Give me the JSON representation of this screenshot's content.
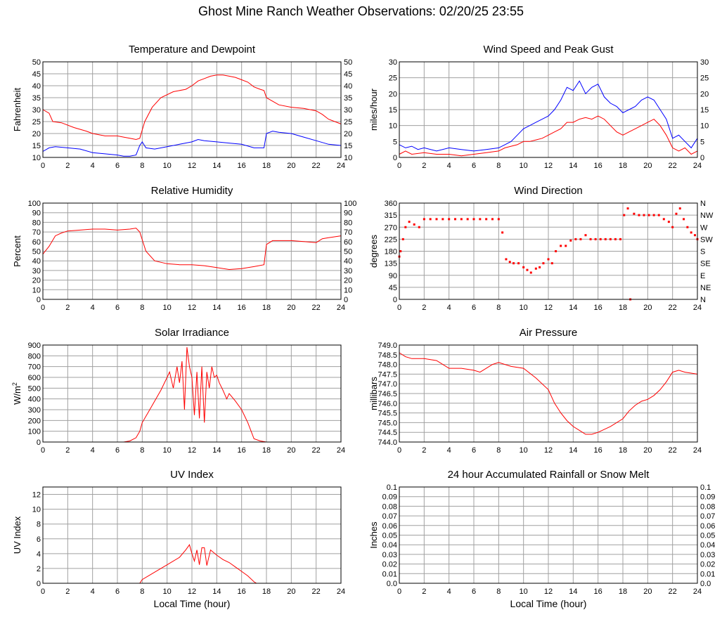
{
  "page": {
    "title": "Ghost Mine Ranch Weather Observations: 02/20/25 23:55"
  },
  "colors": {
    "red": "#ff0000",
    "blue": "#0000ff",
    "grid": "#a0a0a0",
    "frame": "#000000"
  },
  "chart_data": [
    {
      "id": "temp",
      "type": "line",
      "title": "Temperature and Dewpoint",
      "ylabel": "Fahrenheit",
      "xlim": [
        0,
        24
      ],
      "ylim": [
        10,
        50
      ],
      "xticks": [
        "0",
        "2",
        "4",
        "6",
        "8",
        "10",
        "12",
        "14",
        "16",
        "18",
        "20",
        "22",
        "24"
      ],
      "yticks": [
        "10",
        "15",
        "20",
        "25",
        "30",
        "35",
        "40",
        "45",
        "50"
      ],
      "right_yticks": [
        "10",
        "15",
        "20",
        "25",
        "30",
        "35",
        "40",
        "45",
        "50"
      ],
      "series": [
        {
          "color": "red",
          "x": [
            0,
            0.5,
            0.8,
            1.5,
            2.5,
            3.5,
            4,
            5,
            6,
            6.5,
            7,
            7.5,
            7.8,
            8.2,
            8.8,
            9.5,
            10.5,
            11.5,
            12,
            12.5,
            13,
            13.5,
            14,
            14.5,
            15,
            15.5,
            16,
            16.5,
            17,
            17.5,
            17.8,
            18,
            18.5,
            19,
            20,
            21,
            21.5,
            22,
            22.5,
            23,
            23.5,
            24
          ],
          "y": [
            30,
            28.5,
            25,
            24.5,
            22.5,
            21,
            20,
            19,
            19,
            18.5,
            18,
            17.5,
            18,
            25,
            31,
            35,
            37.5,
            38.5,
            40,
            42,
            43,
            44,
            44.5,
            44.5,
            44,
            43.5,
            42.5,
            41.5,
            39.5,
            38.5,
            38,
            35,
            33.5,
            32,
            31,
            30.5,
            30,
            29.5,
            28,
            26,
            25,
            24
          ]
        },
        {
          "color": "blue",
          "x": [
            0,
            0.5,
            1,
            2,
            3,
            4,
            5,
            6,
            6.5,
            7,
            7.5,
            7.8,
            8,
            8.3,
            9,
            10,
            11,
            12,
            12.5,
            13,
            14,
            15,
            16,
            17,
            17.8,
            18,
            18.5,
            19,
            20,
            21,
            22,
            23,
            24
          ],
          "y": [
            12.5,
            14,
            14.5,
            14,
            13.5,
            12,
            11.5,
            11,
            10.5,
            10.5,
            11,
            15,
            16.5,
            14,
            13.5,
            14.5,
            15.5,
            16.5,
            17.5,
            17,
            16.5,
            16,
            15.5,
            14,
            14,
            20,
            21,
            20.5,
            20,
            18.5,
            17,
            15.5,
            15
          ]
        }
      ]
    },
    {
      "id": "wind",
      "type": "line",
      "title": "Wind Speed and Peak Gust",
      "ylabel": "miles/hour",
      "xlim": [
        0,
        24
      ],
      "ylim": [
        0,
        30
      ],
      "xticks": [
        "0",
        "2",
        "4",
        "6",
        "8",
        "10",
        "12",
        "14",
        "16",
        "18",
        "20",
        "22",
        "24"
      ],
      "yticks": [
        "0",
        "5",
        "10",
        "15",
        "20",
        "25",
        "30"
      ],
      "right_yticks": [
        "0",
        "5",
        "10",
        "15",
        "20",
        "25",
        "30"
      ],
      "series": [
        {
          "color": "blue",
          "x": [
            0,
            0.5,
            1,
            1.5,
            2,
            3,
            4,
            5,
            6,
            7,
            8,
            8.5,
            9,
            9.5,
            10,
            10.5,
            11,
            11.5,
            12,
            12.5,
            13,
            13.5,
            14,
            14.5,
            15,
            15.5,
            16,
            16.5,
            17,
            17.5,
            18,
            18.5,
            19,
            19.5,
            20,
            20.5,
            21,
            21.5,
            22,
            22.5,
            23,
            23.5,
            24
          ],
          "y": [
            4,
            3,
            3.5,
            2.5,
            3,
            2,
            3,
            2.5,
            2,
            2.5,
            3,
            4,
            5,
            7,
            9,
            10,
            11,
            12,
            13,
            15,
            18,
            22,
            21,
            24,
            20,
            22,
            23,
            19,
            17,
            16,
            14,
            15,
            16,
            18,
            19,
            18,
            15,
            12,
            6,
            7,
            5,
            3,
            6
          ]
        },
        {
          "color": "red",
          "x": [
            0,
            0.5,
            1,
            2,
            3,
            4,
            5,
            6,
            7,
            8,
            8.5,
            9,
            9.5,
            10,
            10.5,
            11,
            11.5,
            12,
            12.5,
            13,
            13.5,
            14,
            14.5,
            15,
            15.5,
            16,
            16.5,
            17,
            17.5,
            18,
            18.5,
            19,
            19.5,
            20,
            20.5,
            21,
            21.5,
            22,
            22.5,
            23,
            23.5,
            24
          ],
          "y": [
            1,
            2,
            1,
            1.5,
            1,
            1,
            0.5,
            1,
            1.5,
            2,
            3,
            3.5,
            4,
            5,
            5,
            5.5,
            6,
            7,
            8,
            9,
            11,
            11,
            12,
            12.5,
            12,
            13,
            12,
            10,
            8,
            7,
            8,
            9,
            10,
            11,
            12,
            10,
            7,
            3,
            2,
            3,
            1,
            2
          ]
        }
      ]
    },
    {
      "id": "rh",
      "type": "line",
      "title": "Relative Humidity",
      "ylabel": "Percent",
      "xlim": [
        0,
        24
      ],
      "ylim": [
        0,
        100
      ],
      "xticks": [
        "0",
        "2",
        "4",
        "6",
        "8",
        "10",
        "12",
        "14",
        "16",
        "18",
        "20",
        "22",
        "24"
      ],
      "yticks": [
        "0",
        "10",
        "20",
        "30",
        "40",
        "50",
        "60",
        "70",
        "80",
        "90",
        "100"
      ],
      "right_yticks": [
        "0",
        "10",
        "20",
        "30",
        "40",
        "50",
        "60",
        "70",
        "80",
        "90",
        "100"
      ],
      "series": [
        {
          "color": "red",
          "x": [
            0,
            0.5,
            1,
            1.5,
            2,
            3,
            4,
            5,
            6,
            7,
            7.5,
            7.8,
            8.3,
            9,
            10,
            11,
            12,
            13,
            14,
            15,
            16,
            17,
            17.8,
            18,
            18.5,
            19,
            20,
            21,
            22,
            22.5,
            23,
            24
          ],
          "y": [
            47,
            55,
            66,
            69,
            71,
            72,
            73,
            73,
            72,
            73,
            74,
            70,
            50,
            40,
            37,
            36,
            36,
            35,
            33,
            31,
            32,
            34,
            36,
            57,
            61,
            61,
            61,
            60,
            59,
            63,
            64,
            66
          ]
        }
      ]
    },
    {
      "id": "wdir",
      "type": "scatter",
      "title": "Wind Direction",
      "ylabel": "degrees",
      "xlim": [
        0,
        24
      ],
      "ylim": [
        0,
        360
      ],
      "xticks": [
        "0",
        "2",
        "4",
        "6",
        "8",
        "10",
        "12",
        "14",
        "16",
        "18",
        "20",
        "22",
        "24"
      ],
      "yticks": [
        "0",
        "45",
        "90",
        "135",
        "180",
        "225",
        "270",
        "315",
        "360"
      ],
      "right_yticks": [
        "N",
        "NE",
        "E",
        "SE",
        "S",
        "SW",
        "W",
        "NW",
        "N"
      ],
      "series": [
        {
          "color": "red",
          "x": [
            0,
            0.1,
            0.3,
            0.5,
            0.8,
            1.2,
            1.6,
            2,
            2.5,
            3,
            3.5,
            4,
            4.5,
            5,
            5.5,
            6,
            6.5,
            7,
            7.5,
            8,
            8.3,
            8.6,
            8.9,
            9.2,
            9.6,
            10,
            10.3,
            10.6,
            11,
            11.3,
            11.6,
            12,
            12.3,
            12.6,
            13,
            13.4,
            13.8,
            14.2,
            14.6,
            15,
            15.4,
            15.8,
            16.2,
            16.6,
            17,
            17.4,
            17.8,
            18.1,
            18.4,
            18.6,
            18.9,
            19.3,
            19.7,
            20.1,
            20.5,
            20.9,
            21.3,
            21.7,
            22,
            22.3,
            22.6,
            22.9,
            23.2,
            23.5,
            23.8,
            24
          ],
          "y": [
            160,
            180,
            225,
            270,
            290,
            280,
            270,
            300,
            300,
            300,
            300,
            300,
            300,
            300,
            300,
            300,
            300,
            300,
            300,
            300,
            250,
            150,
            140,
            135,
            135,
            120,
            110,
            100,
            115,
            120,
            135,
            150,
            135,
            180,
            200,
            200,
            220,
            225,
            225,
            240,
            225,
            225,
            225,
            225,
            225,
            225,
            225,
            315,
            340,
            0,
            320,
            315,
            315,
            315,
            315,
            315,
            300,
            290,
            270,
            320,
            340,
            300,
            270,
            250,
            240,
            225
          ]
        }
      ]
    },
    {
      "id": "solar",
      "type": "line",
      "title": "Solar Irradiance",
      "ylabel": "W/m2",
      "xlim": [
        0,
        24
      ],
      "ylim": [
        0,
        900
      ],
      "xticks": [
        "0",
        "2",
        "4",
        "6",
        "8",
        "10",
        "12",
        "14",
        "16",
        "18",
        "20",
        "22",
        "24"
      ],
      "yticks": [
        "0",
        "100",
        "200",
        "300",
        "400",
        "500",
        "600",
        "700",
        "800",
        "900"
      ],
      "right_yticks": [],
      "series": [
        {
          "color": "red",
          "x": [
            0,
            6.5,
            7,
            7.5,
            7.8,
            8,
            8.5,
            9,
            9.5,
            10,
            10.2,
            10.5,
            10.8,
            11,
            11.2,
            11.4,
            11.6,
            11.8,
            12,
            12.2,
            12.4,
            12.6,
            12.8,
            13,
            13.2,
            13.4,
            13.6,
            13.8,
            14,
            14.2,
            14.5,
            14.8,
            15,
            15.5,
            16,
            16.5,
            17,
            17.5,
            18,
            24
          ],
          "y": [
            0,
            0,
            10,
            40,
            100,
            180,
            280,
            380,
            480,
            600,
            650,
            500,
            700,
            550,
            750,
            300,
            880,
            700,
            600,
            250,
            650,
            220,
            700,
            180,
            650,
            500,
            700,
            600,
            620,
            550,
            480,
            400,
            450,
            380,
            300,
            180,
            30,
            10,
            0,
            0
          ]
        }
      ]
    },
    {
      "id": "pressure",
      "type": "line",
      "title": "Air Pressure",
      "ylabel": "millibars",
      "xlim": [
        0,
        24
      ],
      "ylim": [
        744.0,
        749.0
      ],
      "xticks": [
        "0",
        "2",
        "4",
        "6",
        "8",
        "10",
        "12",
        "14",
        "16",
        "18",
        "20",
        "22",
        "24"
      ],
      "yticks": [
        "744.0",
        "744.5",
        "745.0",
        "745.5",
        "746.0",
        "746.5",
        "747.0",
        "747.5",
        "748.0",
        "748.5",
        "749.0"
      ],
      "right_yticks": [],
      "series": [
        {
          "color": "red",
          "x": [
            0,
            0.5,
            1,
            2,
            3,
            3.5,
            4,
            5,
            6,
            6.5,
            7,
            7.5,
            8,
            8.5,
            9,
            10,
            11,
            12,
            12.5,
            13,
            13.5,
            14,
            14.5,
            15,
            15.5,
            16,
            17,
            18,
            18.5,
            19,
            19.5,
            20,
            20.5,
            21,
            21.5,
            22,
            22.5,
            23,
            24
          ],
          "y": [
            748.6,
            748.4,
            748.3,
            748.3,
            748.2,
            748.0,
            747.8,
            747.8,
            747.7,
            747.6,
            747.8,
            748.0,
            748.1,
            748.0,
            747.9,
            747.8,
            747.3,
            746.7,
            746.0,
            745.5,
            745.1,
            744.8,
            744.6,
            744.4,
            744.4,
            744.5,
            744.8,
            745.2,
            745.6,
            745.9,
            746.1,
            746.2,
            746.4,
            746.7,
            747.1,
            747.6,
            747.7,
            747.6,
            747.5
          ]
        }
      ]
    },
    {
      "id": "uv",
      "type": "line",
      "title": "UV Index",
      "ylabel": "UV Index",
      "xlabel": "Local Time (hour)",
      "xlim": [
        0,
        24
      ],
      "ylim": [
        0,
        13
      ],
      "xticks": [
        "0",
        "2",
        "4",
        "6",
        "8",
        "10",
        "12",
        "14",
        "16",
        "18",
        "20",
        "22",
        "24"
      ],
      "yticks": [
        "0",
        "2",
        "4",
        "6",
        "8",
        "10",
        "12"
      ],
      "right_yticks": [],
      "series": [
        {
          "color": "red",
          "x": [
            0,
            7.8,
            8,
            9,
            10,
            11,
            11.5,
            11.8,
            12,
            12.2,
            12.4,
            12.6,
            12.8,
            13,
            13.2,
            13.5,
            14,
            14.5,
            15,
            15.5,
            16,
            16.5,
            17,
            17.2,
            24
          ],
          "y": [
            0,
            0,
            0.5,
            1.5,
            2.5,
            3.5,
            4.5,
            5.2,
            4,
            3,
            4.5,
            2.5,
            4.8,
            4.8,
            2.4,
            4.5,
            3.8,
            3.2,
            2.8,
            2.2,
            1.6,
            1.0,
            0.2,
            0,
            0
          ]
        }
      ]
    },
    {
      "id": "rain",
      "type": "line",
      "title": "24 hour Accumulated Rainfall or Snow Melt",
      "ylabel": "Inches",
      "xlabel": "Local Time (hour)",
      "xlim": [
        0,
        24
      ],
      "ylim": [
        0,
        0.1
      ],
      "xticks": [
        "0",
        "2",
        "4",
        "6",
        "8",
        "10",
        "12",
        "14",
        "16",
        "18",
        "20",
        "22",
        "24"
      ],
      "yticks": [
        "0.0",
        "0.01",
        "0.02",
        "0.03",
        "0.04",
        "0.05",
        "0.06",
        "0.07",
        "0.08",
        "0.09",
        "0.1"
      ],
      "right_yticks": [
        "0.0",
        "0.01",
        "0.02",
        "0.03",
        "0.04",
        "0.05",
        "0.06",
        "0.07",
        "0.08",
        "0.09",
        "0.1"
      ],
      "series": [
        {
          "color": "red",
          "x": [
            0,
            24
          ],
          "y": [
            0,
            0
          ]
        }
      ]
    }
  ]
}
